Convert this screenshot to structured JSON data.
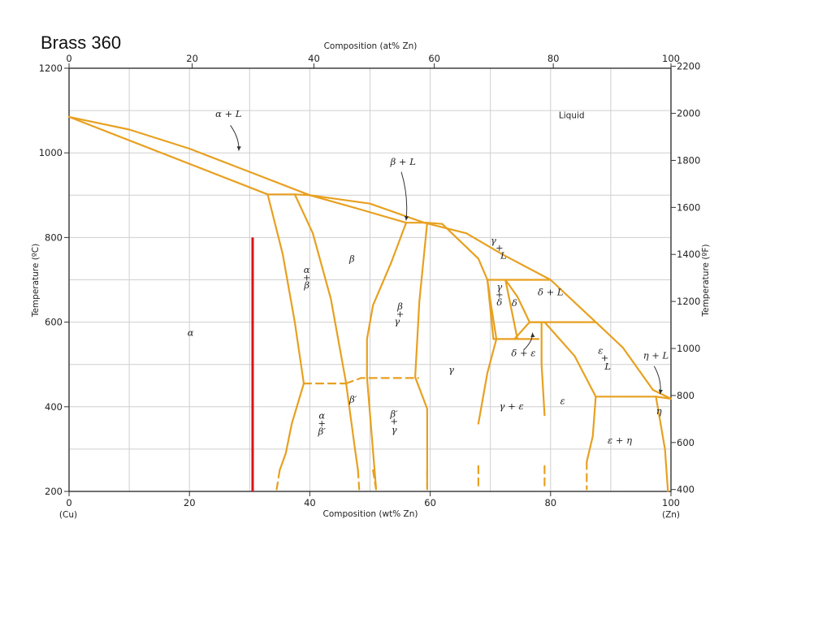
{
  "slide": {
    "title": "Brass 360"
  },
  "chart_data": {
    "type": "phase-diagram",
    "top_axis": {
      "label": "Composition (at% Zn)",
      "ticks": [
        "0",
        "20",
        "40",
        "60",
        "80",
        "100"
      ],
      "range": [
        0,
        100
      ]
    },
    "bottom_axis": {
      "label": "Composition (wt% Zn)",
      "ticks": [
        "0",
        "20",
        "40",
        "60",
        "80",
        "100"
      ],
      "range": [
        0,
        100
      ],
      "end_labels": {
        "left": "(Cu)",
        "right": "(Zn)"
      }
    },
    "left_axis": {
      "label": "Temperature (ºC)",
      "ticks": [
        "200",
        "400",
        "600",
        "800",
        "1000",
        "1200"
      ],
      "range": [
        200,
        1200
      ]
    },
    "right_axis": {
      "label": "Temperature (ºF)",
      "ticks": [
        "400",
        "600",
        "800",
        "1000",
        "1200",
        "1400",
        "1600",
        "1800",
        "2000",
        "2200"
      ]
    },
    "grid": true,
    "marker": {
      "composition_wt": 30.5,
      "temp_range": [
        200,
        800
      ],
      "color": "#dd1111"
    },
    "phase_labels": [
      {
        "text": "α + L",
        "wt": 26.5,
        "t": 1085
      },
      {
        "text": "Liquid",
        "wt": 83.5,
        "t": 1082
      },
      {
        "text": "β + L",
        "wt": 55.5,
        "t": 972
      },
      {
        "text": "β",
        "wt": 47,
        "t": 742
      },
      {
        "text": "α",
        "wt": 39.5,
        "t": 716
      },
      {
        "text": "+",
        "wt": 39.5,
        "t": 698
      },
      {
        "text": "β",
        "wt": 39.5,
        "t": 680
      },
      {
        "text": "γ",
        "wt": 70.5,
        "t": 785
      },
      {
        "text": "+",
        "wt": 71.5,
        "t": 768
      },
      {
        "text": "L",
        "wt": 72.2,
        "t": 750
      },
      {
        "text": "γ",
        "wt": 71.5,
        "t": 676
      },
      {
        "text": "+",
        "wt": 71.5,
        "t": 658
      },
      {
        "text": "δ",
        "wt": 71.5,
        "t": 640
      },
      {
        "text": "δ",
        "wt": 74,
        "t": 638
      },
      {
        "text": "δ + L",
        "wt": 80,
        "t": 664
      },
      {
        "text": "β",
        "wt": 55,
        "t": 630
      },
      {
        "text": "+",
        "wt": 55,
        "t": 612
      },
      {
        "text": "γ",
        "wt": 54.5,
        "t": 594
      },
      {
        "text": "α",
        "wt": 20.2,
        "t": 568
      },
      {
        "text": "γ",
        "wt": 63.5,
        "t": 480
      },
      {
        "text": "δ + ε",
        "wt": 75.5,
        "t": 520
      },
      {
        "text": "ε",
        "wt": 88.3,
        "t": 525
      },
      {
        "text": "+",
        "wt": 89,
        "t": 508
      },
      {
        "text": "L",
        "wt": 89.5,
        "t": 488
      },
      {
        "text": "η + L",
        "wt": 97.5,
        "t": 514
      },
      {
        "text": "β′",
        "wt": 47.2,
        "t": 410
      },
      {
        "text": "γ + ε",
        "wt": 73.5,
        "t": 394
      },
      {
        "text": "ε",
        "wt": 82,
        "t": 406
      },
      {
        "text": "η",
        "wt": 98,
        "t": 382
      },
      {
        "text": "α",
        "wt": 42,
        "t": 372
      },
      {
        "text": "+",
        "wt": 42,
        "t": 354
      },
      {
        "text": "β′",
        "wt": 42,
        "t": 334
      },
      {
        "text": "β′",
        "wt": 54,
        "t": 376
      },
      {
        "text": "+",
        "wt": 54,
        "t": 358
      },
      {
        "text": "γ",
        "wt": 54,
        "t": 338
      },
      {
        "text": "ε + η",
        "wt": 91.5,
        "t": 313
      }
    ],
    "boundaries": [
      {
        "name": "liquidus-alpha",
        "dashed": false,
        "points": [
          [
            0,
            1085
          ],
          [
            33,
            902
          ]
        ]
      },
      {
        "name": "solidus-alpha",
        "dashed": false,
        "points": [
          [
            0,
            1085
          ],
          [
            10,
            1055
          ],
          [
            20,
            1010
          ],
          [
            30,
            955
          ],
          [
            40,
            900
          ]
        ]
      },
      {
        "name": "peritectic-903",
        "dashed": false,
        "points": [
          [
            33,
            902
          ],
          [
            37.5,
            902
          ],
          [
            40,
            900
          ]
        ]
      },
      {
        "name": "alpha-solvus",
        "dashed": false,
        "points": [
          [
            33,
            902
          ],
          [
            35.5,
            760
          ],
          [
            37.5,
            600
          ],
          [
            39,
            455
          ]
        ]
      },
      {
        "name": "beta-boundary-left",
        "dashed": false,
        "points": [
          [
            37.5,
            902
          ],
          [
            40.5,
            810
          ],
          [
            43.5,
            655
          ],
          [
            46,
            458
          ]
        ]
      },
      {
        "name": "liquidus-beta",
        "dashed": false,
        "points": [
          [
            40,
            900
          ],
          [
            50,
            880
          ],
          [
            59,
            835
          ]
        ]
      },
      {
        "name": "solidus-beta",
        "dashed": false,
        "points": [
          [
            40,
            900
          ],
          [
            48,
            868
          ],
          [
            56,
            835
          ]
        ]
      },
      {
        "name": "peritectic-835",
        "dashed": false,
        "points": [
          [
            56,
            835
          ],
          [
            59.5,
            835
          ],
          [
            62,
            832
          ]
        ]
      },
      {
        "name": "beta-boundary-right",
        "dashed": false,
        "points": [
          [
            56,
            835
          ],
          [
            53.5,
            740
          ],
          [
            50.5,
            640
          ],
          [
            49.5,
            560
          ],
          [
            49.5,
            470
          ],
          [
            51,
            208
          ]
        ]
      },
      {
        "name": "gamma-boundary-left",
        "dashed": false,
        "points": [
          [
            59.5,
            835
          ],
          [
            58.2,
            650
          ],
          [
            57.5,
            470
          ],
          [
            59.5,
            395
          ],
          [
            59.5,
            210
          ]
        ]
      },
      {
        "name": "liquidus-gamma",
        "dashed": false,
        "points": [
          [
            59,
            835
          ],
          [
            66,
            810
          ],
          [
            72,
            760
          ],
          [
            80,
            700
          ]
        ]
      },
      {
        "name": "gamma-delta-line",
        "dashed": false,
        "points": [
          [
            69.5,
            700
          ],
          [
            80,
            700
          ]
        ]
      },
      {
        "name": "gamma-boundary-right",
        "dashed": false,
        "points": [
          [
            62,
            832
          ],
          [
            68,
            750
          ],
          [
            69.5,
            700
          ],
          [
            70,
            650
          ],
          [
            71,
            560
          ]
        ]
      },
      {
        "name": "delta-left",
        "dashed": false,
        "points": [
          [
            69.5,
            700
          ],
          [
            70.5,
            560
          ]
        ]
      },
      {
        "name": "delta-ledge",
        "dashed": false,
        "points": [
          [
            72.5,
            700
          ],
          [
            73.5,
            630
          ],
          [
            74.5,
            560
          ]
        ]
      },
      {
        "name": "delta-right",
        "dashed": false,
        "points": [
          [
            72.5,
            700
          ],
          [
            74.5,
            660
          ],
          [
            76.5,
            600
          ]
        ]
      },
      {
        "name": "delta-bottom",
        "dashed": false,
        "points": [
          [
            74,
            560
          ],
          [
            76.5,
            600
          ],
          [
            79,
            600
          ]
        ]
      },
      {
        "name": "delta-eutectoid",
        "dashed": false,
        "points": [
          [
            70.5,
            560
          ],
          [
            78,
            560
          ]
        ]
      },
      {
        "name": "eta-liquidus-line",
        "dashed": false,
        "points": [
          [
            76.5,
            600
          ],
          [
            87.5,
            600
          ]
        ]
      },
      {
        "name": "liquidus-epsilon",
        "dashed": false,
        "points": [
          [
            80,
            700
          ],
          [
            87.5,
            600
          ],
          [
            92,
            540
          ],
          [
            97,
            440
          ],
          [
            100,
            419
          ]
        ]
      },
      {
        "name": "gamma-eps-left",
        "dashed": false,
        "points": [
          [
            71,
            560
          ],
          [
            69.5,
            480
          ],
          [
            68,
            360
          ]
        ]
      },
      {
        "name": "gamma-eps-right",
        "dashed": false,
        "points": [
          [
            78.5,
            600
          ],
          [
            78.5,
            500
          ],
          [
            79,
            380
          ]
        ]
      },
      {
        "name": "epsilon-left",
        "dashed": false,
        "points": [
          [
            79,
            600
          ],
          [
            84,
            520
          ],
          [
            87.5,
            424
          ]
        ]
      },
      {
        "name": "epsilon-eta-line",
        "dashed": false,
        "points": [
          [
            87.5,
            424
          ],
          [
            97.5,
            424
          ]
        ]
      },
      {
        "name": "eta-boundary",
        "dashed": false,
        "points": [
          [
            97.5,
            424
          ],
          [
            100,
            419
          ]
        ]
      },
      {
        "name": "epsilon-eta-left",
        "dashed": false,
        "points": [
          [
            87.5,
            424
          ],
          [
            87,
            330
          ],
          [
            86,
            270
          ]
        ]
      },
      {
        "name": "eta-right",
        "dashed": false,
        "points": [
          [
            97.5,
            424
          ],
          [
            99,
            300
          ],
          [
            99.5,
            200
          ]
        ]
      },
      {
        "name": "alpha-low-left",
        "dashed": false,
        "points": [
          [
            39,
            455
          ],
          [
            37,
            360
          ],
          [
            36,
            290
          ],
          [
            35,
            250
          ]
        ]
      },
      {
        "name": "alpha-low-dash",
        "dashed": true,
        "points": [
          [
            35,
            250
          ],
          [
            34.5,
            205
          ]
        ]
      },
      {
        "name": "beta-ordering-1",
        "dashed": true,
        "points": [
          [
            39,
            455
          ],
          [
            46,
            455
          ]
        ]
      },
      {
        "name": "beta-ordering-2",
        "dashed": true,
        "points": [
          [
            46,
            455
          ],
          [
            48.5,
            468
          ],
          [
            58,
            468
          ]
        ]
      },
      {
        "name": "betaprime-left",
        "dashed": false,
        "points": [
          [
            46,
            458
          ],
          [
            47.5,
            300
          ],
          [
            48,
            250
          ]
        ]
      },
      {
        "name": "betaprime-left-dash",
        "dashed": true,
        "points": [
          [
            48,
            250
          ],
          [
            48.2,
            205
          ]
        ]
      },
      {
        "name": "betaprime-right-dash",
        "dashed": true,
        "points": [
          [
            50.5,
            250
          ],
          [
            51,
            205
          ]
        ]
      },
      {
        "name": "gamma-right-dash",
        "dashed": true,
        "points": [
          [
            59.5,
            250
          ],
          [
            59.5,
            205
          ]
        ]
      },
      {
        "name": "gamma-eps-left-dash",
        "dashed": true,
        "points": [
          [
            68,
            260
          ],
          [
            68,
            205
          ]
        ]
      },
      {
        "name": "gamma-eps-right-dash",
        "dashed": true,
        "points": [
          [
            79,
            260
          ],
          [
            79,
            205
          ]
        ]
      },
      {
        "name": "epsilon-eta-left-dash",
        "dashed": true,
        "points": [
          [
            86,
            270
          ],
          [
            86,
            205
          ]
        ]
      }
    ],
    "pointers": [
      {
        "name": "alpha-L-arrow",
        "from": [
          26.8,
          1065
        ],
        "to": [
          28.2,
          1005
        ]
      },
      {
        "name": "beta-L-arrow",
        "from": [
          55.2,
          955
        ],
        "to": [
          56,
          840
        ]
      },
      {
        "name": "delta-eps-arrow",
        "from": [
          75.5,
          534
        ],
        "to": [
          77,
          575
        ]
      },
      {
        "name": "eta-L-arrow",
        "from": [
          97.2,
          496
        ],
        "to": [
          98.2,
          430
        ]
      }
    ]
  }
}
